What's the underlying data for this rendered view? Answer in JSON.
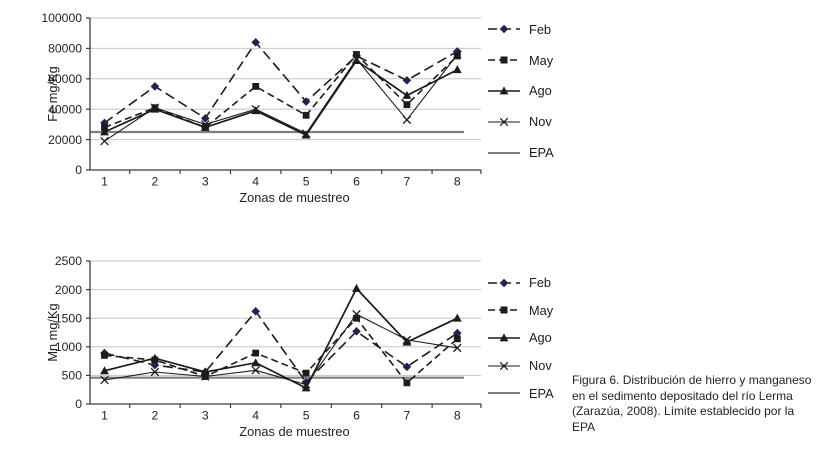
{
  "figure": {
    "caption": "Figura 6. Distribución de hierro y manganeso en el sedimento depositado del río Lerma (Zarazúa, 2008). Límite establecido por la EPA"
  },
  "colors": {
    "ink": "#1c1c1c",
    "diamond_navy": "#23234f",
    "grid": "#c6c6c6",
    "axis": "#3a3a3a",
    "epa_gray": "#7f7f7f",
    "text": "#231f20"
  },
  "chart_data": [
    {
      "type": "line",
      "title": "",
      "xlabel": "Zonas de muestreo",
      "ylabel": "Fe mg/Kg",
      "categories": [
        "1",
        "2",
        "3",
        "4",
        "5",
        "6",
        "7",
        "8"
      ],
      "ylim": [
        0,
        100000
      ],
      "ytick_step": 20000,
      "ytick_labels": [
        "0",
        "20000",
        "40000",
        "60000",
        "80000",
        "100000"
      ],
      "grid": true,
      "legend_position": "right",
      "series": [
        {
          "name": "Feb",
          "marker": "diamond",
          "line": "long-dash",
          "values": [
            31000,
            55000,
            34000,
            84000,
            45000,
            75000,
            59000,
            78000
          ]
        },
        {
          "name": "May",
          "marker": "square",
          "line": "dash",
          "values": [
            28000,
            41000,
            28000,
            55000,
            36000,
            76000,
            43000,
            75000
          ]
        },
        {
          "name": "Ago",
          "marker": "triangle",
          "line": "solid",
          "values": [
            25000,
            40000,
            28000,
            39000,
            23000,
            72000,
            49000,
            66000
          ]
        },
        {
          "name": "Nov",
          "marker": "x",
          "line": "solid-thin",
          "values": [
            19000,
            41000,
            30000,
            40000,
            24000,
            73000,
            33000,
            76000
          ]
        },
        {
          "name": "EPA",
          "marker": "none",
          "line": "epa",
          "values": [
            25000,
            25000,
            25000,
            25000,
            25000,
            25000,
            25000,
            25000
          ]
        }
      ]
    },
    {
      "type": "line",
      "title": "",
      "xlabel": "Zonas de muestreo",
      "ylabel": "Mn mg/Kg",
      "categories": [
        "1",
        "2",
        "3",
        "4",
        "5",
        "6",
        "7",
        "8"
      ],
      "ylim": [
        0,
        2500
      ],
      "ytick_step": 500,
      "ytick_labels": [
        "0",
        "500",
        "1000",
        "1500",
        "2000",
        "2500"
      ],
      "grid": true,
      "legend_position": "right",
      "series": [
        {
          "name": "Feb",
          "marker": "diamond",
          "line": "long-dash",
          "values": [
            890,
            680,
            560,
            1620,
            380,
            1270,
            650,
            1240
          ]
        },
        {
          "name": "May",
          "marker": "square",
          "line": "dash",
          "values": [
            850,
            770,
            480,
            890,
            540,
            1500,
            370,
            1140
          ]
        },
        {
          "name": "Ago",
          "marker": "triangle",
          "line": "solid",
          "values": [
            580,
            800,
            560,
            720,
            280,
            2020,
            1080,
            1500
          ]
        },
        {
          "name": "Nov",
          "marker": "x",
          "line": "solid-thin",
          "values": [
            420,
            560,
            480,
            590,
            340,
            1570,
            1120,
            980
          ]
        },
        {
          "name": "EPA",
          "marker": "none",
          "line": "epa",
          "values": [
            460,
            460,
            460,
            460,
            460,
            460,
            460,
            460
          ]
        }
      ]
    }
  ]
}
